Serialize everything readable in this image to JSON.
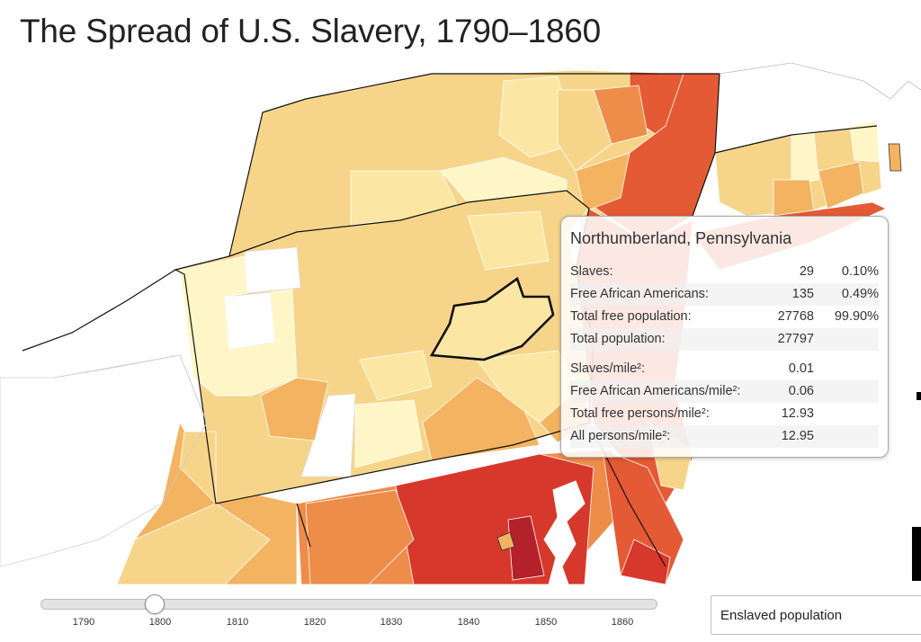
{
  "title": "The Spread of U.S. Slavery, 1790–1860",
  "map": {
    "selected_county": "Northumberland, Pennsylvania",
    "color_scale": {
      "white": "#ffffff",
      "very_light": "#fff6c8",
      "light": "#fbe7a3",
      "medium_light": "#f6d58a",
      "medium": "#f3b361",
      "medium_dark": "#ee8c4a",
      "dark": "#e45a34",
      "darker": "#d6382b",
      "darkest": "#b3212b"
    }
  },
  "tooltip": {
    "title": "Northumberland, Pennsylvania",
    "rows": [
      {
        "label": "Slaves:",
        "value": "29",
        "pct": "0.10%"
      },
      {
        "label": "Free African Americans:",
        "value": "135",
        "pct": "0.49%"
      },
      {
        "label": "Total free population:",
        "value": "27768",
        "pct": "99.90%"
      },
      {
        "label": "Total population:",
        "value": "27797",
        "pct": ""
      }
    ],
    "density_rows": [
      {
        "label": "Slaves/mile²:",
        "value": "0.01"
      },
      {
        "label": "Free African Americans/mile²:",
        "value": "0.06"
      },
      {
        "label": "Total free persons/mile²:",
        "value": "12.93"
      },
      {
        "label": "All persons/mile²:",
        "value": "12.95"
      }
    ]
  },
  "timeline": {
    "years": [
      "1790",
      "1800",
      "1810",
      "1820",
      "1830",
      "1840",
      "1850",
      "1860"
    ],
    "selected_year": "1800"
  },
  "metric_select": {
    "value": "Enslaved population"
  }
}
